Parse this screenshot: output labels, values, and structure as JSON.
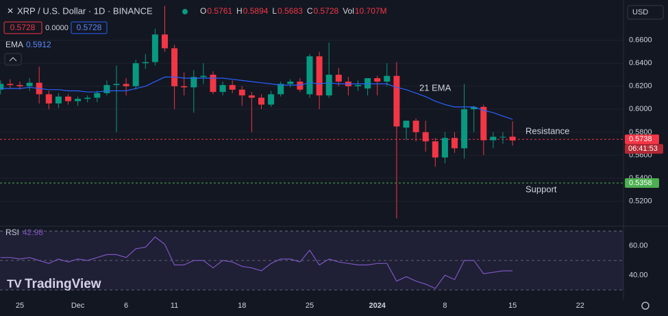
{
  "chart_data": {
    "type": "candlestick",
    "title": "XRP / U.S. Dollar · 1D · BINANCE",
    "legend_values": [
      {
        "label": "O",
        "value": "0.5761"
      },
      {
        "label": "H",
        "value": "0.5894"
      },
      {
        "label": "L",
        "value": "0.5683"
      },
      {
        "label": "C",
        "value": "0.5728"
      },
      {
        "label": "Vol",
        "value": "10.707M"
      }
    ],
    "price_boxes": [
      "0.5728",
      "0.0000",
      "0.5728"
    ],
    "currency": "USD",
    "brand": "TradingView",
    "categories": [
      null,
      null,
      "25",
      null,
      null,
      null,
      null,
      null,
      "Dec",
      null,
      null,
      null,
      null,
      "6",
      null,
      null,
      null,
      null,
      "11",
      null,
      null,
      null,
      null,
      null,
      null,
      "18",
      null,
      null,
      null,
      null,
      null,
      null,
      "25",
      null,
      null,
      null,
      null,
      null,
      null,
      "2024",
      null,
      null,
      null,
      null,
      null,
      null,
      "8",
      null,
      null,
      null,
      null,
      null,
      null,
      "15",
      null,
      null,
      null,
      null,
      null,
      null,
      "22"
    ],
    "open": [
      0.617,
      0.622,
      0.621,
      0.62,
      0.623,
      0.613,
      0.605,
      0.611,
      0.607,
      0.609,
      0.61,
      0.614,
      0.621,
      0.622,
      0.62,
      0.64,
      0.641,
      0.665,
      0.653,
      0.62,
      0.619,
      0.628,
      0.63,
      0.615,
      0.621,
      0.617,
      0.612,
      0.61,
      0.604,
      0.613,
      0.622,
      0.624,
      0.613,
      0.646,
      0.612,
      0.63,
      0.624,
      0.62,
      0.618,
      0.627,
      0.624,
      0.629,
      0.584,
      0.59,
      0.58,
      0.572,
      0.558,
      0.575,
      0.566,
      0.6,
      0.602,
      0.573,
      0.576,
      0.5761,
      null,
      null,
      null,
      null,
      null,
      null,
      null
    ],
    "high": [
      0.625,
      0.626,
      0.624,
      0.627,
      0.637,
      0.616,
      0.614,
      0.613,
      0.611,
      0.612,
      0.616,
      0.625,
      0.638,
      0.627,
      0.643,
      0.648,
      0.67,
      0.69,
      0.656,
      0.632,
      0.634,
      0.64,
      0.633,
      0.624,
      0.625,
      0.62,
      0.615,
      0.613,
      0.616,
      0.624,
      0.626,
      0.627,
      0.648,
      0.65,
      0.658,
      0.636,
      0.628,
      0.625,
      0.626,
      0.629,
      0.64,
      0.641,
      0.59,
      0.592,
      0.59,
      0.575,
      0.58,
      0.58,
      0.622,
      0.603,
      0.604,
      0.58,
      0.58,
      0.5894,
      null,
      null,
      null,
      null,
      null,
      null,
      null
    ],
    "low": [
      0.613,
      0.618,
      0.617,
      0.616,
      0.605,
      0.6,
      0.601,
      0.604,
      0.603,
      0.606,
      0.606,
      0.612,
      0.58,
      0.612,
      0.617,
      0.635,
      0.638,
      0.65,
      0.6,
      0.612,
      0.597,
      0.622,
      0.613,
      0.612,
      0.614,
      0.603,
      0.58,
      0.6,
      0.602,
      0.611,
      0.619,
      0.615,
      0.61,
      0.6,
      0.61,
      0.62,
      0.612,
      0.616,
      0.612,
      0.612,
      0.62,
      0.505,
      0.573,
      0.572,
      0.563,
      0.55,
      0.553,
      0.562,
      0.557,
      0.58,
      0.56,
      0.566,
      0.57,
      0.5683,
      null,
      null,
      null,
      null,
      null,
      null,
      null
    ],
    "close": [
      0.622,
      0.621,
      0.62,
      0.623,
      0.613,
      0.605,
      0.611,
      0.607,
      0.609,
      0.61,
      0.614,
      0.621,
      0.622,
      0.62,
      0.64,
      0.641,
      0.665,
      0.653,
      0.62,
      0.619,
      0.628,
      0.629,
      0.615,
      0.621,
      0.617,
      0.612,
      0.61,
      0.604,
      0.613,
      0.622,
      0.624,
      0.617,
      0.646,
      0.612,
      0.63,
      0.624,
      0.62,
      0.621,
      0.627,
      0.624,
      0.629,
      0.585,
      0.59,
      0.58,
      0.572,
      0.558,
      0.575,
      0.566,
      0.6,
      0.602,
      0.573,
      0.576,
      0.576,
      0.5728,
      null,
      null,
      null,
      null,
      null,
      null,
      null
    ],
    "colors": {
      "up": "#089981",
      "down": "#f23645"
    },
    "ylim": [
      0.5,
      0.695
    ],
    "yticks": [
      {
        "value": 0.52,
        "label": "0.5200"
      },
      {
        "value": 0.54,
        "label": "0.5400"
      },
      {
        "value": 0.56,
        "label": "0.5600"
      },
      {
        "value": 0.58,
        "label": "0.5800"
      },
      {
        "value": 0.6,
        "label": "0.6000"
      },
      {
        "value": 0.62,
        "label": "0.6200"
      },
      {
        "value": 0.64,
        "label": "0.6400"
      },
      {
        "value": 0.66,
        "label": "0.6600"
      }
    ],
    "ema": {
      "name": "EMA",
      "value_label": "0.5912",
      "annotation": "21 EMA",
      "color": "#2962ff",
      "values": [
        0.618,
        0.618,
        0.618,
        0.619,
        0.618,
        0.617,
        0.617,
        0.616,
        0.616,
        0.615,
        0.615,
        0.616,
        0.616,
        0.616,
        0.618,
        0.62,
        0.624,
        0.628,
        0.628,
        0.627,
        0.627,
        0.627,
        0.627,
        0.627,
        0.626,
        0.625,
        0.624,
        0.623,
        0.622,
        0.621,
        0.621,
        0.621,
        0.623,
        0.622,
        0.623,
        0.622,
        0.622,
        0.622,
        0.622,
        0.622,
        0.622,
        0.619,
        0.617,
        0.614,
        0.611,
        0.607,
        0.604,
        0.602,
        0.602,
        0.602,
        0.599,
        0.597,
        0.594,
        0.5912,
        null,
        null,
        null,
        null,
        null,
        null,
        null
      ]
    },
    "price_lines": [
      {
        "name": "Resistance",
        "value": 0.5738,
        "label": "0.5738",
        "countdown": "06:41:53",
        "color": "#f23645"
      },
      {
        "name": "Support",
        "value": 0.5358,
        "label": "0.5358",
        "color": "#4caf50"
      }
    ],
    "rsi": {
      "type": "line",
      "name": "RSI",
      "value_label": "42.98",
      "color": "#7e57c2",
      "ylim": [
        24.4,
        73.3
      ],
      "yticks": [
        {
          "value": 40,
          "label": "40.00"
        },
        {
          "value": 60,
          "label": "60.00"
        }
      ],
      "levels": [
        30,
        50,
        70
      ],
      "values": [
        52,
        52,
        51,
        52,
        50,
        48,
        51,
        49,
        51,
        50,
        52,
        54,
        54,
        52,
        58,
        59,
        66,
        61,
        47,
        47,
        50,
        50,
        45,
        50,
        49,
        46,
        45,
        43,
        48,
        51,
        51,
        49,
        57,
        47,
        51,
        49,
        48,
        47,
        47,
        48,
        48,
        36,
        39,
        36,
        34,
        31,
        40,
        37,
        50,
        50,
        41,
        42,
        43,
        42.98,
        null,
        null,
        null,
        null,
        null,
        null,
        null
      ]
    }
  }
}
